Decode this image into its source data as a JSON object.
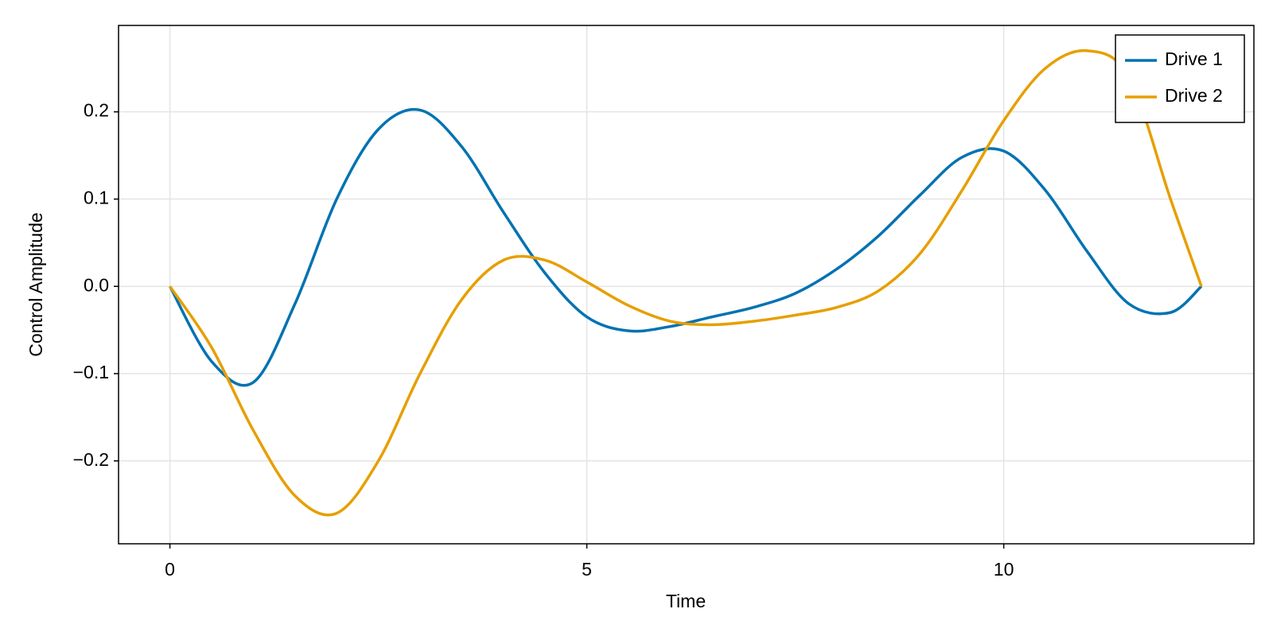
{
  "chart_data": {
    "type": "line",
    "x_label": "Time",
    "y_label": "Control Amplitude",
    "x": [
      0,
      0.5,
      1,
      1.5,
      2,
      2.5,
      3,
      3.5,
      4,
      4.5,
      5,
      5.5,
      6,
      6.5,
      7,
      7.5,
      8,
      8.5,
      9,
      9.5,
      10,
      10.5,
      11,
      11.5,
      12,
      12.37
    ],
    "series": [
      {
        "name": "Drive 1",
        "color": "#0072b2",
        "values": [
          0,
          -0.086,
          -0.11,
          -0.02,
          0.1,
          0.18,
          0.202,
          0.16,
          0.085,
          0.015,
          -0.035,
          -0.051,
          -0.046,
          -0.035,
          -0.024,
          -0.008,
          0.02,
          0.058,
          0.105,
          0.148,
          0.155,
          0.11,
          0.04,
          -0.02,
          -0.03,
          0
        ]
      },
      {
        "name": "Drive 2",
        "color": "#e69f00",
        "values": [
          0,
          -0.07,
          -0.165,
          -0.24,
          -0.26,
          -0.2,
          -0.1,
          -0.015,
          0.03,
          0.03,
          0.005,
          -0.022,
          -0.04,
          -0.044,
          -0.04,
          -0.033,
          -0.024,
          -0.005,
          0.038,
          0.11,
          0.19,
          0.25,
          0.27,
          0.24,
          0.1,
          0
        ]
      }
    ],
    "xlim": [
      -0.616,
      13.0
    ],
    "ylim": [
      -0.295,
      0.299
    ],
    "xticks": [
      0,
      5,
      10
    ],
    "yticks": [
      {
        "value": -0.2,
        "label": "−0.2"
      },
      {
        "value": -0.1,
        "label": "−0.1"
      },
      {
        "value": 0,
        "label": "0.0"
      },
      0.1,
      0.2
    ],
    "grid": true,
    "legend": "top-right"
  }
}
